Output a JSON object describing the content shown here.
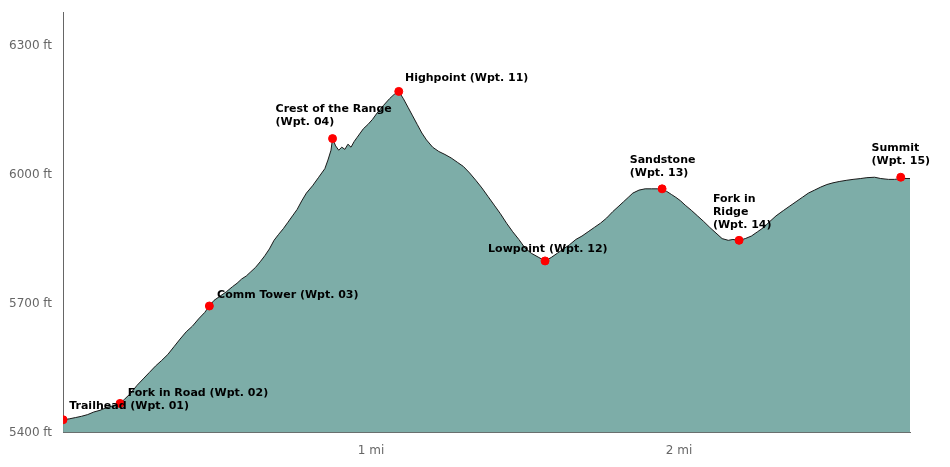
{
  "chart_data": {
    "type": "area",
    "color": "#7DADA8",
    "grid": false,
    "xlim": [
      0,
      2.75
    ],
    "ylim": [
      5400,
      6380
    ],
    "xticks": [
      {
        "value": 1.0,
        "label": "1 mi"
      },
      {
        "value": 2.0,
        "label": "2 mi"
      }
    ],
    "yticks": [
      {
        "value": 5400,
        "label": "5400 ft"
      },
      {
        "value": 5700,
        "label": "5700 ft"
      },
      {
        "value": 6000,
        "label": "6000 ft"
      },
      {
        "value": 6300,
        "label": "6300 ft"
      }
    ],
    "x": [
      0.0,
      0.02,
      0.04,
      0.06,
      0.08,
      0.1,
      0.12,
      0.14,
      0.16,
      0.185,
      0.2,
      0.22,
      0.24,
      0.26,
      0.28,
      0.3,
      0.32,
      0.34,
      0.36,
      0.38,
      0.4,
      0.42,
      0.44,
      0.46,
      0.475,
      0.49,
      0.51,
      0.53,
      0.55,
      0.565,
      0.58,
      0.595,
      0.61,
      0.625,
      0.64,
      0.655,
      0.67,
      0.685,
      0.7,
      0.715,
      0.73,
      0.745,
      0.76,
      0.775,
      0.79,
      0.81,
      0.83,
      0.85,
      0.86,
      0.87,
      0.875,
      0.885,
      0.895,
      0.905,
      0.915,
      0.925,
      0.935,
      0.945,
      0.955,
      0.965,
      0.975,
      0.99,
      1.005,
      1.02,
      1.04,
      1.06,
      1.075,
      1.09,
      1.105,
      1.12,
      1.135,
      1.15,
      1.165,
      1.18,
      1.2,
      1.22,
      1.24,
      1.26,
      1.28,
      1.3,
      1.32,
      1.34,
      1.36,
      1.38,
      1.4,
      1.42,
      1.44,
      1.46,
      1.48,
      1.5,
      1.52,
      1.545,
      1.565,
      1.585,
      1.605,
      1.625,
      1.645,
      1.665,
      1.685,
      1.705,
      1.725,
      1.745,
      1.765,
      1.785,
      1.805,
      1.82,
      1.835,
      1.85,
      1.87,
      1.89,
      1.91,
      1.93,
      1.945,
      1.96,
      1.975,
      1.99,
      2.005,
      2.02,
      2.04,
      2.06,
      2.08,
      2.1,
      2.12,
      2.14,
      2.16,
      2.175,
      2.195,
      2.215,
      2.235,
      2.255,
      2.275,
      2.295,
      2.315,
      2.34,
      2.36,
      2.38,
      2.4,
      2.42,
      2.44,
      2.46,
      2.48,
      2.5,
      2.52,
      2.545,
      2.565,
      2.59,
      2.61,
      2.635,
      2.655,
      2.68,
      2.7,
      2.72,
      2.75
    ],
    "series": [
      {
        "type": "area",
        "color": "#1A1A1A",
        "values": [
          5430,
          5432,
          5435,
          5438,
          5442,
          5448,
          5452,
          5458,
          5462,
          5468,
          5478,
          5492,
          5510,
          5525,
          5540,
          5555,
          5568,
          5582,
          5600,
          5618,
          5635,
          5648,
          5665,
          5680,
          5695,
          5708,
          5718,
          5728,
          5740,
          5748,
          5758,
          5765,
          5775,
          5785,
          5798,
          5812,
          5828,
          5848,
          5862,
          5875,
          5890,
          5905,
          5920,
          5940,
          5958,
          5975,
          5995,
          6015,
          6035,
          6058,
          6085,
          6068,
          6058,
          6065,
          6060,
          6072,
          6065,
          6078,
          6088,
          6098,
          6108,
          6118,
          6130,
          6145,
          6162,
          6178,
          6188,
          6195,
          6178,
          6158,
          6138,
          6118,
          6098,
          6082,
          6065,
          6055,
          6048,
          6040,
          6030,
          6020,
          6005,
          5988,
          5970,
          5950,
          5930,
          5910,
          5888,
          5868,
          5850,
          5830,
          5818,
          5808,
          5800,
          5808,
          5818,
          5828,
          5838,
          5850,
          5858,
          5868,
          5878,
          5888,
          5900,
          5915,
          5928,
          5938,
          5948,
          5958,
          5965,
          5968,
          5968,
          5968,
          5968,
          5962,
          5955,
          5948,
          5940,
          5930,
          5918,
          5905,
          5892,
          5878,
          5865,
          5852,
          5848,
          5850,
          5848,
          5852,
          5858,
          5868,
          5878,
          5892,
          5905,
          5918,
          5928,
          5938,
          5948,
          5958,
          5965,
          5972,
          5978,
          5982,
          5985,
          5988,
          5990,
          5992,
          5994,
          5995,
          5992,
          5990,
          5990,
          5992,
          5992
        ]
      },
      {
        "type": "scatter",
        "color": "red",
        "marker": "circle",
        "x": [
          0.0,
          0.185,
          0.475,
          0.875,
          1.09,
          1.565,
          1.945,
          2.195,
          2.72
        ],
        "values": [
          5430,
          5468,
          5695,
          6085,
          6195,
          5800,
          5968,
          5848,
          5995
        ]
      }
    ],
    "annotations": [
      {
        "text": "Trailhead (Wpt. 01)",
        "x": 0.02,
        "y": 5448
      },
      {
        "text": "Fork in Road (Wpt. 02)",
        "x": 0.21,
        "y": 5480
      },
      {
        "text": "Comm Tower (Wpt. 03)",
        "x": 0.5,
        "y": 5707
      },
      {
        "text": "Crest of the Range\n(Wpt. 04)",
        "x": 0.69,
        "y": 6110
      },
      {
        "text": "Highpoint (Wpt. 11)",
        "x": 1.11,
        "y": 6212
      },
      {
        "text": "Lowpoint (Wpt. 12)",
        "x": 1.38,
        "y": 5815
      },
      {
        "text": "Sandstone\n(Wpt. 13)",
        "x": 1.84,
        "y": 5992
      },
      {
        "text": "Fork in\nRidge\n(Wpt. 14)",
        "x": 2.11,
        "y": 5870
      },
      {
        "text": "Summit\n(Wpt. 15)",
        "x": 2.625,
        "y": 6020
      }
    ]
  }
}
